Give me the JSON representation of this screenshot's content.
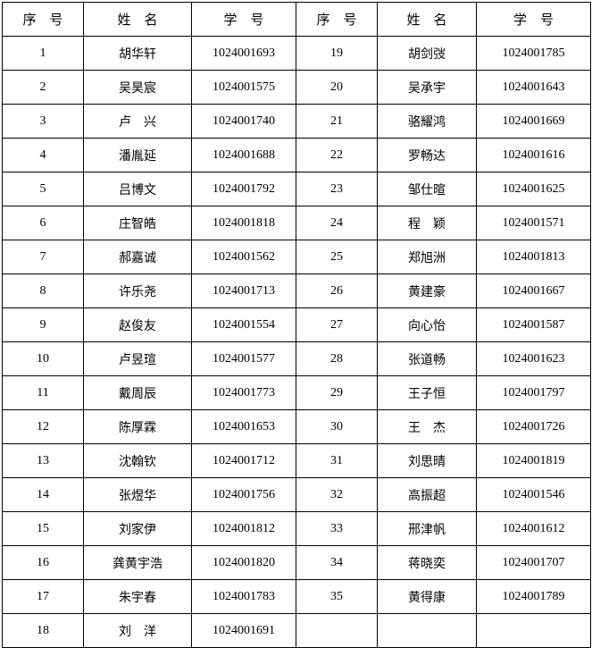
{
  "headers": [
    "序　号",
    "姓　名",
    "学　号",
    "序　号",
    "姓　名",
    "学　号"
  ],
  "left": [
    {
      "no": "1",
      "name": "胡华轩",
      "id": "1024001693"
    },
    {
      "no": "2",
      "name": "吴昊宸",
      "id": "1024001575"
    },
    {
      "no": "3",
      "name": "卢　兴",
      "id": "1024001740"
    },
    {
      "no": "4",
      "name": "潘胤延",
      "id": "1024001688"
    },
    {
      "no": "5",
      "name": "吕博文",
      "id": "1024001792"
    },
    {
      "no": "6",
      "name": "庄智皓",
      "id": "1024001818"
    },
    {
      "no": "7",
      "name": "郝嘉诚",
      "id": "1024001562"
    },
    {
      "no": "8",
      "name": "许乐尧",
      "id": "1024001713"
    },
    {
      "no": "9",
      "name": "赵俊友",
      "id": "1024001554"
    },
    {
      "no": "10",
      "name": "卢昱瑄",
      "id": "1024001577"
    },
    {
      "no": "11",
      "name": "戴周辰",
      "id": "1024001773"
    },
    {
      "no": "12",
      "name": "陈厚霖",
      "id": "1024001653"
    },
    {
      "no": "13",
      "name": "沈翰钦",
      "id": "1024001712"
    },
    {
      "no": "14",
      "name": "张煜华",
      "id": "1024001756"
    },
    {
      "no": "15",
      "name": "刘家伊",
      "id": "1024001812"
    },
    {
      "no": "16",
      "name": "龚黄宇浩",
      "id": "1024001820"
    },
    {
      "no": "17",
      "name": "朱宇春",
      "id": "1024001783"
    },
    {
      "no": "18",
      "name": "刘　洋",
      "id": "1024001691"
    }
  ],
  "right": [
    {
      "no": "19",
      "name": "胡剑弢",
      "id": "1024001785"
    },
    {
      "no": "20",
      "name": "吴承宇",
      "id": "1024001643"
    },
    {
      "no": "21",
      "name": "骆耀鸿",
      "id": "1024001669"
    },
    {
      "no": "22",
      "name": "罗畅达",
      "id": "1024001616"
    },
    {
      "no": "23",
      "name": "邹仕暄",
      "id": "1024001625"
    },
    {
      "no": "24",
      "name": "程　颖",
      "id": "1024001571"
    },
    {
      "no": "25",
      "name": "郑旭洲",
      "id": "1024001813"
    },
    {
      "no": "26",
      "name": "黄建豪",
      "id": "1024001667"
    },
    {
      "no": "27",
      "name": "向心怡",
      "id": "1024001587"
    },
    {
      "no": "28",
      "name": "张道畅",
      "id": "1024001623"
    },
    {
      "no": "29",
      "name": "王子恒",
      "id": "1024001797"
    },
    {
      "no": "30",
      "name": "王　杰",
      "id": "1024001726"
    },
    {
      "no": "31",
      "name": "刘思晴",
      "id": "1024001819"
    },
    {
      "no": "32",
      "name": "高振超",
      "id": "1024001546"
    },
    {
      "no": "33",
      "name": "邢津帆",
      "id": "1024001612"
    },
    {
      "no": "34",
      "name": "蒋晓奕",
      "id": "1024001707"
    },
    {
      "no": "35",
      "name": "黄得康",
      "id": "1024001789"
    }
  ]
}
